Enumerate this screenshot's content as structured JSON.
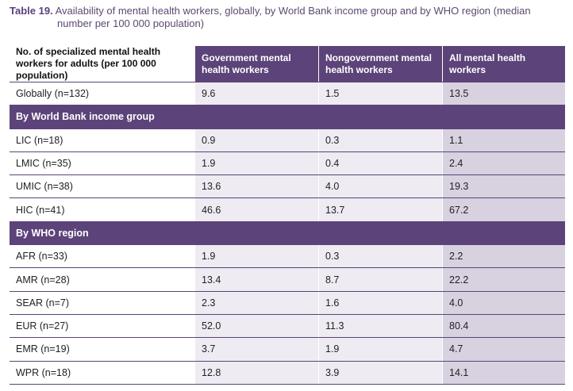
{
  "caption": {
    "label": "Table 19.",
    "text": "Availability of mental health workers, globally, by World Bank income group and by WHO region (median number per 100 000 population)"
  },
  "table": {
    "header": [
      "No. of specialized mental health workers for adults (per 100 000 population)",
      "Government mental health workers",
      "Nongovernment mental health workers",
      "All mental health workers"
    ],
    "rows": [
      {
        "cells": [
          "Globally (n=132)",
          "9.6",
          "1.5",
          "13.5"
        ]
      },
      {
        "section": "By World Bank income group"
      },
      {
        "cells": [
          "LIC (n=18)",
          "0.9",
          "0.3",
          "1.1"
        ]
      },
      {
        "cells": [
          "LMIC (n=35)",
          "1.9",
          "0.4",
          "2.4"
        ]
      },
      {
        "cells": [
          "UMIC (n=38)",
          "13.6",
          "4.0",
          "19.3"
        ]
      },
      {
        "cells": [
          "HIC (n=41)",
          "46.6",
          "13.7",
          "67.2"
        ]
      },
      {
        "section": "By WHO region"
      },
      {
        "cells": [
          "AFR (n=33)",
          "1.9",
          "0.3",
          "2.2"
        ]
      },
      {
        "cells": [
          "AMR (n=28)",
          "13.4",
          "8.7",
          "22.2"
        ]
      },
      {
        "cells": [
          "SEAR (n=7)",
          "2.3",
          "1.6",
          "4.0"
        ]
      },
      {
        "cells": [
          "EUR (n=27)",
          "52.0",
          "11.3",
          "80.4"
        ]
      },
      {
        "cells": [
          "EMR (n=19)",
          "3.7",
          "1.9",
          "4.7"
        ]
      },
      {
        "cells": [
          "WPR (n=18)",
          "12.8",
          "3.9",
          "14.1"
        ]
      }
    ]
  }
}
